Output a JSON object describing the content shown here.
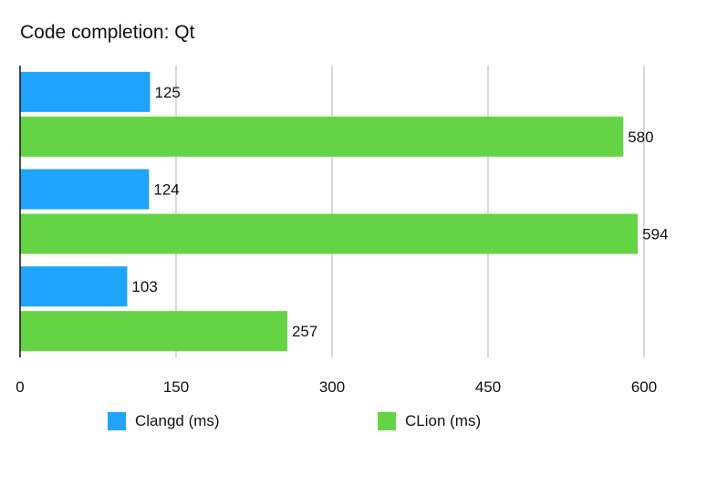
{
  "chart_data": {
    "type": "bar",
    "orientation": "horizontal",
    "title": "Code completion: Qt",
    "xlabel": "",
    "ylabel": "",
    "xlim": [
      0,
      600
    ],
    "xticks": [
      0,
      150,
      300,
      450,
      600
    ],
    "grid": true,
    "legend": "bottom",
    "categories": [
      "",
      "",
      ""
    ],
    "series": [
      {
        "name": "Clangd (ms)",
        "color": "#1fa3fb",
        "values": [
          125,
          124,
          103
        ]
      },
      {
        "name": "CLion (ms)",
        "color": "#64d444",
        "values": [
          580,
          594,
          257
        ]
      }
    ]
  }
}
